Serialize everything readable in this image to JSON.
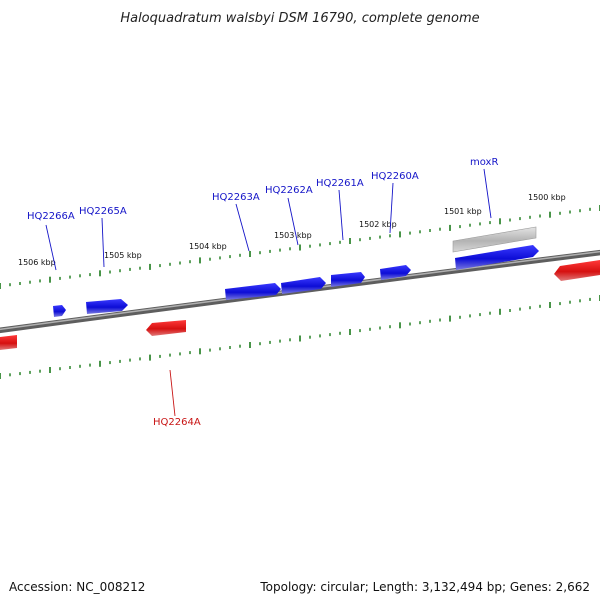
{
  "title": "Haloquadratum walsbyi DSM 16790, complete genome",
  "footer": {
    "accession": "Accession: NC_008212",
    "summary": "Topology: circular; Length: 3,132,494 bp; Genes: 2,662"
  },
  "colors": {
    "forward_gene": "#1010e6",
    "reverse_gene": "#e61010",
    "pseudo_gene": "#bdbdbd",
    "backbone": "#7a7a7a",
    "ticks": "#1a7a1a",
    "forward_label": "#1515c8",
    "reverse_label": "#c81515"
  },
  "kbp_labels": [
    "1506 kbp",
    "1505 kbp",
    "1504 kbp",
    "1503 kbp",
    "1502 kbp",
    "1501 kbp",
    "1500 kbp"
  ],
  "genes": [
    {
      "label": "HQ2266A",
      "strand": "forward"
    },
    {
      "label": "HQ2265A",
      "strand": "forward"
    },
    {
      "label": "HQ2263A",
      "strand": "forward"
    },
    {
      "label": "HQ2262A",
      "strand": "forward"
    },
    {
      "label": "HQ2261A",
      "strand": "forward"
    },
    {
      "label": "HQ2260A",
      "strand": "forward"
    },
    {
      "label": "moxR",
      "strand": "forward"
    },
    {
      "label": "HQ2264A",
      "strand": "reverse"
    }
  ]
}
